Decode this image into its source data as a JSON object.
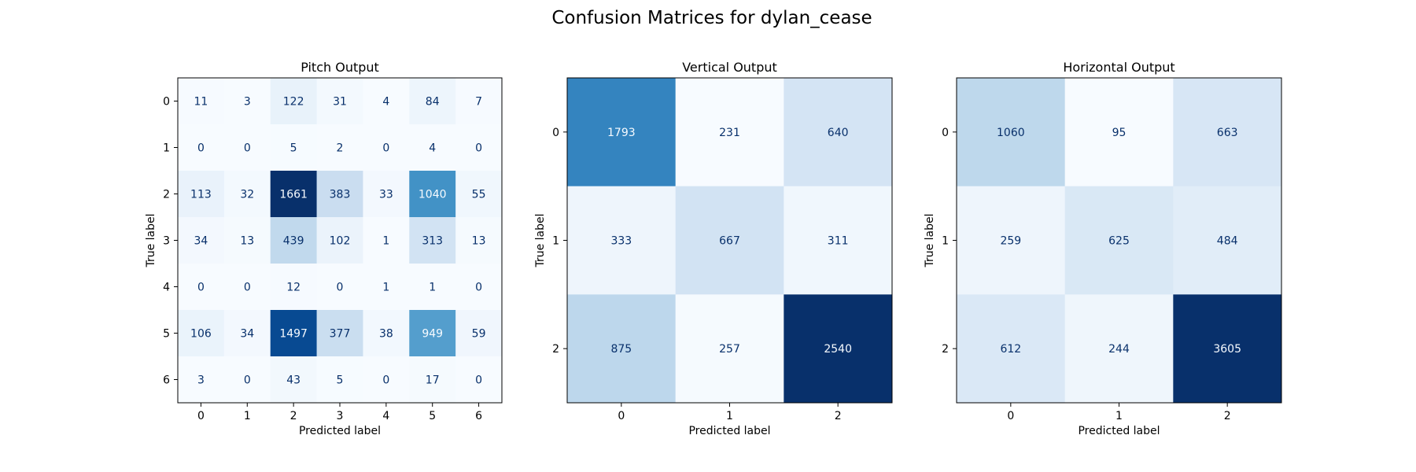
{
  "figure": {
    "title": "Confusion Matrices for dylan_cease"
  },
  "chart_data": [
    {
      "type": "heatmap",
      "title": "Pitch Output",
      "xlabel": "Predicted label",
      "ylabel": "True label",
      "x_ticks": [
        "0",
        "1",
        "2",
        "3",
        "4",
        "5",
        "6"
      ],
      "y_ticks": [
        "0",
        "1",
        "2",
        "3",
        "4",
        "5",
        "6"
      ],
      "values": [
        [
          11,
          3,
          122,
          31,
          4,
          84,
          7
        ],
        [
          0,
          0,
          5,
          2,
          0,
          4,
          0
        ],
        [
          113,
          32,
          1661,
          383,
          33,
          1040,
          55
        ],
        [
          34,
          13,
          439,
          102,
          1,
          313,
          13
        ],
        [
          0,
          0,
          12,
          0,
          1,
          1,
          0
        ],
        [
          106,
          34,
          1497,
          377,
          38,
          949,
          59
        ],
        [
          3,
          0,
          43,
          5,
          0,
          17,
          0
        ]
      ],
      "colormap": "Blues",
      "colorbar": false
    },
    {
      "type": "heatmap",
      "title": "Vertical Output",
      "xlabel": "Predicted label",
      "ylabel": "True label",
      "x_ticks": [
        "0",
        "1",
        "2"
      ],
      "y_ticks": [
        "0",
        "1",
        "2"
      ],
      "values": [
        [
          1793,
          231,
          640
        ],
        [
          333,
          667,
          311
        ],
        [
          875,
          257,
          2540
        ]
      ],
      "colormap": "Blues",
      "colorbar": false
    },
    {
      "type": "heatmap",
      "title": "Horizontal Output",
      "xlabel": "Predicted label",
      "ylabel": "True label",
      "x_ticks": [
        "0",
        "1",
        "2"
      ],
      "y_ticks": [
        "0",
        "1",
        "2"
      ],
      "values": [
        [
          1060,
          95,
          663
        ],
        [
          259,
          625,
          484
        ],
        [
          612,
          244,
          3605
        ]
      ],
      "colormap": "Blues",
      "colorbar": false
    }
  ]
}
